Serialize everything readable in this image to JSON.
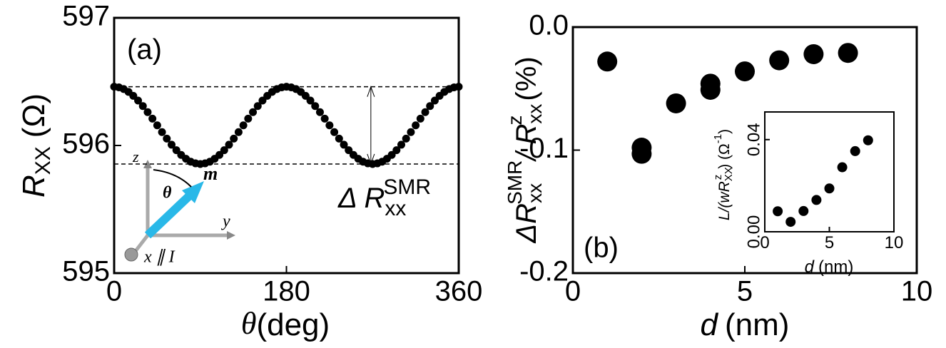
{
  "chart_data": [
    {
      "type": "scatter",
      "panel_label": "(a)",
      "xlabel": {
        "symbol": "θ",
        "unit": "(deg)"
      },
      "ylabel": {
        "symbol": "R",
        "subscript": "XX",
        "unit": "(Ω)"
      },
      "annotation": {
        "symbol": "Δ R",
        "subscript": "xx",
        "superscript": "SMR"
      },
      "diagram_labels": {
        "z": "z",
        "m": "m",
        "theta": "θ",
        "y": "y",
        "x": "x ∥ I"
      },
      "xlim": [
        0,
        360
      ],
      "xticks": [
        0,
        180,
        360
      ],
      "ylim": [
        595,
        597
      ],
      "yticks": [
        595,
        596,
        597
      ],
      "reference_lines": [
        596.46,
        595.855
      ],
      "color": "#000000",
      "x": [
        0,
        5,
        10,
        15,
        20,
        25,
        30,
        35,
        40,
        45,
        50,
        55,
        60,
        65,
        70,
        75,
        80,
        85,
        90,
        95,
        100,
        105,
        110,
        115,
        120,
        125,
        130,
        135,
        140,
        145,
        150,
        155,
        160,
        165,
        170,
        175,
        180,
        185,
        190,
        195,
        200,
        205,
        210,
        215,
        220,
        225,
        230,
        235,
        240,
        245,
        250,
        255,
        260,
        265,
        270,
        275,
        280,
        285,
        290,
        295,
        300,
        305,
        310,
        315,
        320,
        325,
        330,
        335,
        340,
        345,
        350,
        355,
        360
      ],
      "values": [
        596.46,
        596.455,
        596.442,
        596.42,
        596.389,
        596.352,
        596.309,
        596.261,
        596.21,
        596.158,
        596.105,
        596.054,
        596.006,
        595.963,
        595.926,
        595.896,
        595.873,
        595.86,
        595.855,
        595.86,
        595.873,
        595.896,
        595.926,
        595.963,
        596.006,
        596.054,
        596.105,
        596.158,
        596.21,
        596.261,
        596.309,
        596.352,
        596.389,
        596.42,
        596.442,
        596.455,
        596.46,
        596.455,
        596.442,
        596.42,
        596.389,
        596.352,
        596.309,
        596.261,
        596.21,
        596.158,
        596.105,
        596.054,
        596.006,
        595.963,
        595.926,
        595.896,
        595.873,
        595.86,
        595.855,
        595.86,
        595.873,
        595.896,
        595.926,
        595.963,
        596.006,
        596.054,
        596.105,
        596.158,
        596.21,
        596.261,
        596.309,
        596.352,
        596.389,
        596.42,
        596.442,
        596.455,
        596.46
      ]
    },
    {
      "type": "scatter",
      "panel_label": "(b)",
      "xlabel": {
        "symbol": "d",
        "unit": "(nm)"
      },
      "ylabel": {
        "symbol": "ΔR",
        "subscript": "xx",
        "superscript": "SMR",
        "divider": "/ R",
        "subscript2": "xx",
        "superscript2": "z",
        "unit": "(%)"
      },
      "xlim": [
        0,
        10
      ],
      "xticks": [
        0,
        5,
        10
      ],
      "ylim": [
        -0.2,
        0
      ],
      "yticks": [
        -0.2,
        -0.1,
        {
          "value": 0,
          "label": "0.0"
        }
      ],
      "color": "#000000",
      "x": [
        1,
        2,
        2,
        3,
        4,
        4,
        5,
        6,
        7,
        8
      ],
      "values": [
        -0.028,
        -0.098,
        -0.103,
        -0.062,
        -0.046,
        -0.051,
        -0.036,
        -0.027,
        -0.022,
        -0.021
      ]
    },
    {
      "type": "scatter",
      "xlabel": {
        "symbol": "d",
        "unit": "(nm)"
      },
      "ylabel": {
        "text": "L/(wR",
        "subscript": "XX",
        "superscript": "z",
        "rest": ") (Ω",
        "exponent": "-1",
        "close": ")"
      },
      "xlim": [
        0,
        10
      ],
      "xticks": [
        0,
        5,
        10
      ],
      "ylim": [
        0,
        0.052
      ],
      "yticks": [
        {
          "value": 0,
          "label": "0.00"
        },
        {
          "value": 0.04,
          "label": "0.04"
        }
      ],
      "color": "#000000",
      "x": [
        1,
        2,
        3,
        4,
        5,
        6,
        7,
        8
      ],
      "values": [
        0.0089,
        0.0043,
        0.009,
        0.0138,
        0.0188,
        0.028,
        0.035,
        0.0397
      ]
    }
  ]
}
